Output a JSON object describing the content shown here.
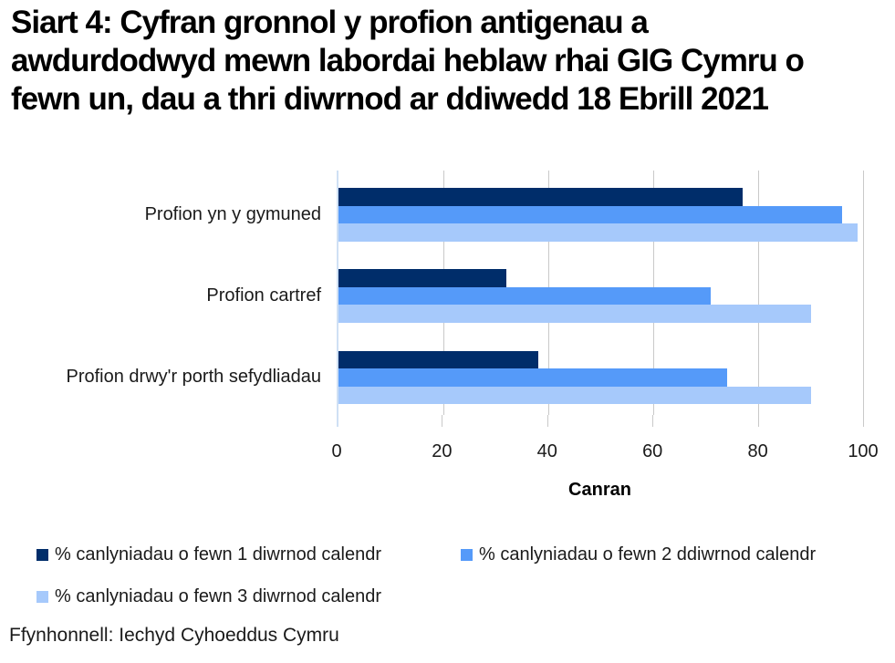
{
  "title_lines": [
    "Siart 4: Cyfran gronnol y profion antigenau a",
    "awdurdodwyd mewn labordai heblaw rhai GIG Cymru o",
    "fewn un, dau a thri diwrnod ar ddiwedd 18 Ebrill 2021"
  ],
  "source": "Ffynhonnell: Iechyd Cyhoeddus Cymru",
  "chart_data": {
    "type": "bar",
    "orientation": "horizontal",
    "title": "Siart 4: Cyfran gronnol y profion antigenau a awdurdodwyd mewn labordai heblaw rhai GIG Cymru o fewn un, dau a thri diwrnod ar ddiwedd 18 Ebrill 2021",
    "categories": [
      "Profion yn y gymuned",
      "Profion cartref",
      "Profion drwy'r porth sefydliadau"
    ],
    "series": [
      {
        "name": "% canlyniadau o fewn 1 diwrnod calendr",
        "color": "#002d6a",
        "values": [
          77,
          32,
          38
        ]
      },
      {
        "name": "% canlyniadau o fewn 2 ddiwrnod calendr",
        "color": "#559af9",
        "values": [
          96,
          71,
          74
        ]
      },
      {
        "name": "% canlyniadau o fewn 3 diwrnod calendr",
        "color": "#a6c9fb",
        "values": [
          99,
          90,
          90
        ]
      }
    ],
    "xlabel": "Canran",
    "xlim": [
      0,
      100
    ],
    "xticks": [
      0,
      20,
      40,
      60,
      80,
      100
    ],
    "grid": true,
    "legend_position": "bottom",
    "colors": {
      "gridline": "#c9c9c9",
      "axis_line": "#cfe0f4"
    }
  }
}
